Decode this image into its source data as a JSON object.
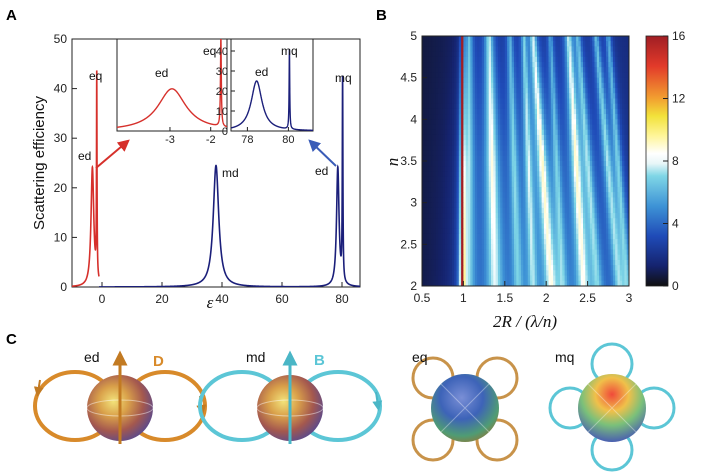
{
  "panels": {
    "a": "A",
    "b": "B",
    "c": "C"
  },
  "colors": {
    "red": "#d6302b",
    "navy": "#1b1f7a",
    "orange": "#d88a2a",
    "cyan": "#5cc6d6"
  },
  "chart_data": [
    {
      "type": "line",
      "panel": "A",
      "xlabel": "ε",
      "ylabel": "Scattering efficiency",
      "xlim": [
        -10,
        86
      ],
      "ylim": [
        0,
        50
      ],
      "xticks": [
        0,
        20,
        40,
        60,
        80
      ],
      "yticks": [
        0,
        10,
        20,
        30,
        40,
        50
      ],
      "series": [
        {
          "color": "#d6302b",
          "peaks": [
            {
              "x": -3.2,
              "y": 24,
              "w": 0.55,
              "label": "ed"
            },
            {
              "x": -1.75,
              "y": 41,
              "w": 0.1,
              "label": "eq"
            }
          ]
        },
        {
          "color": "#1b1f7a",
          "peaks": [
            {
              "x": 38,
              "y": 24.5,
              "w": 1.1,
              "label": "md"
            },
            {
              "x": 78.6,
              "y": 24,
              "w": 0.5,
              "label": "ed"
            },
            {
              "x": 80.2,
              "y": 40.5,
              "w": 0.12,
              "label": "mq"
            }
          ]
        }
      ],
      "insets": [
        {
          "series_color": "#d6302b",
          "xlim": [
            -4.3,
            -1.6
          ],
          "ylim": [
            0,
            48
          ],
          "xticks": [
            -3,
            -2
          ],
          "labels": [
            "ed",
            "eq"
          ],
          "peaks": [
            {
              "x": -2.95,
              "y": 22,
              "w": 0.42
            },
            {
              "x": -1.75,
              "y": 47,
              "w": 0.012
            }
          ]
        },
        {
          "series_color": "#1b1f7a",
          "xlim": [
            77.2,
            81.2
          ],
          "ylim": [
            0,
            46
          ],
          "xticks": [
            78,
            80
          ],
          "yticks": [
            0,
            10,
            20,
            30,
            40
          ],
          "labels": [
            "ed",
            "mq"
          ],
          "peaks": [
            {
              "x": 78.45,
              "y": 25,
              "w": 0.32
            },
            {
              "x": 80.05,
              "y": 40,
              "w": 0.018
            }
          ]
        }
      ]
    },
    {
      "type": "heatmap",
      "panel": "B",
      "xlabel": "2R / (λ/n)",
      "ylabel": "n",
      "xlim": [
        0.5,
        3
      ],
      "ylim": [
        2,
        5
      ],
      "xticks": [
        "0.5",
        "1",
        "1.5",
        "2",
        "2.5",
        "3"
      ],
      "yticks": [
        "2",
        "2.5",
        "3",
        "3.5",
        "4",
        "4.5",
        "5"
      ],
      "colorbar": {
        "range": [
          0,
          16
        ],
        "ticks": [
          "0",
          "4",
          "8",
          "12",
          "16"
        ]
      },
      "resonance_lines": [
        {
          "x_at_n5": 0.985,
          "x_at_n2": 0.985,
          "peak": 16,
          "width": 0.012
        },
        {
          "x_at_n5": 1.07,
          "x_at_n2": 1.06,
          "peak": 5,
          "width": 0.05
        },
        {
          "x_at_n5": 1.31,
          "x_at_n2": 1.38,
          "peak": 6.5,
          "width": 0.06
        },
        {
          "x_at_n5": 1.56,
          "x_at_n2": 1.66,
          "peak": 4.5,
          "width": 0.04
        },
        {
          "x_at_n5": 1.73,
          "x_at_n2": 1.84,
          "peak": 5,
          "width": 0.035
        },
        {
          "x_at_n5": 1.84,
          "x_at_n2": 2.06,
          "peak": 6.5,
          "width": 0.05
        },
        {
          "x_at_n5": 2.05,
          "x_at_n2": 2.2,
          "peak": 4,
          "width": 0.035
        },
        {
          "x_at_n5": 2.27,
          "x_at_n2": 2.45,
          "peak": 6.5,
          "width": 0.05
        },
        {
          "x_at_n5": 2.38,
          "x_at_n2": 2.62,
          "peak": 4.5,
          "width": 0.04
        },
        {
          "x_at_n5": 2.6,
          "x_at_n2": 2.88,
          "peak": 5,
          "width": 0.04
        },
        {
          "x_at_n5": 2.75,
          "x_at_n2": 2.98,
          "peak": 4.5,
          "width": 0.035
        }
      ]
    }
  ],
  "c_modes": [
    {
      "label": "ed",
      "field": "D",
      "field_color": "#d88a2a"
    },
    {
      "label": "md",
      "field": "B",
      "field_color": "#5cc6d6"
    },
    {
      "label": "eq"
    },
    {
      "label": "mq"
    }
  ]
}
